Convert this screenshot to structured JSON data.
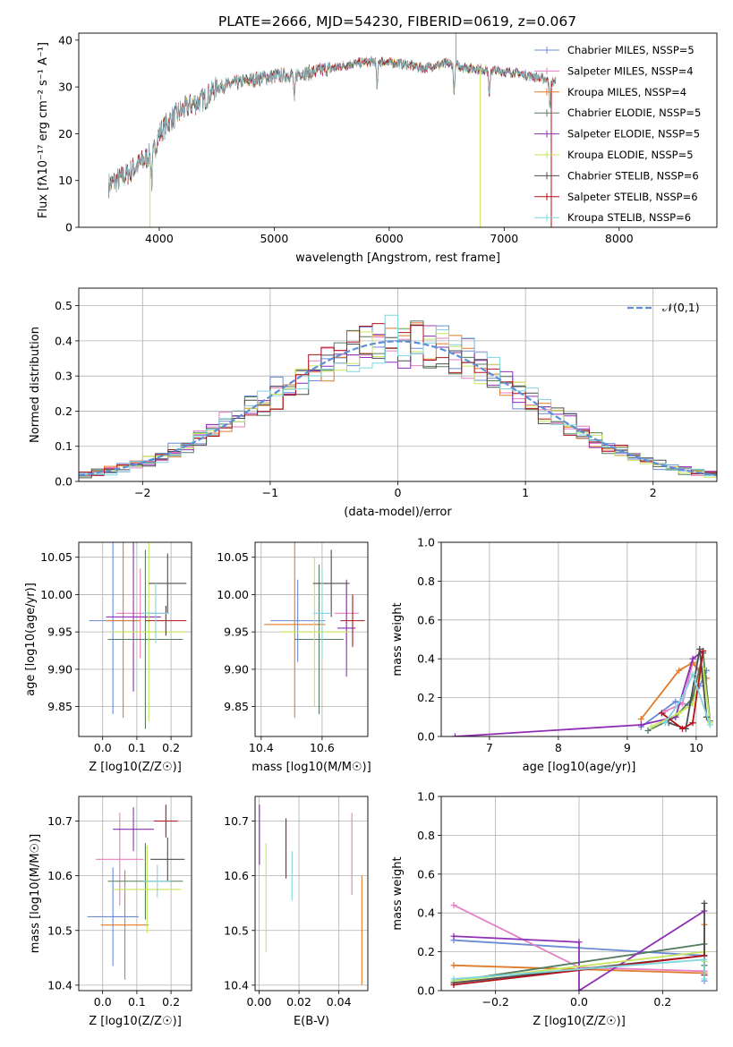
{
  "figure": {
    "title": "PLATE=2666, MJD=54230, FIBERID=0619, z=0.067"
  },
  "colors": {
    "chabrier_miles": "#6a8cd6",
    "salpeter_miles": "#e77fc0",
    "kroupa_miles": "#e07b2a",
    "chabrier_elodie": "#567d5f",
    "salpeter_elodie": "#8e2fb5",
    "kroupa_elodie": "#c6e65c",
    "chabrier_stelib": "#4d4d4d",
    "salpeter_stelib": "#b3121b",
    "kroupa_stelib": "#7fd6df",
    "normal_curve": "#5b8fd9"
  },
  "chart_data": [
    {
      "type": "line",
      "id": "spectrum",
      "xlabel": "wavelength [Angstrom, rest frame]",
      "ylabel": "Flux [fλ10⁻¹⁷ erg cm⁻² s⁻¹ A⁻¹]",
      "xlim": [
        3300,
        8850
      ],
      "ylim": [
        0,
        41.5
      ],
      "xticks": [
        4000,
        5000,
        6000,
        7000,
        8000
      ],
      "yticks": [
        0,
        10,
        20,
        30,
        40
      ],
      "grid": false,
      "legend_position": "top-right",
      "legend": [
        "Chabrier MILES, NSSP=5",
        "Salpeter MILES, NSSP=4",
        "Kroupa MILES, NSSP=4",
        "Chabrier ELODIE, NSSP=5",
        "Salpeter ELODIE, NSSP=5",
        "Kroupa ELODIE, NSSP=5",
        "Chabrier STELIB, NSSP=6",
        "Salpeter STELIB, NSSP=6",
        "Kroupa STELIB, NSSP=6"
      ],
      "continuum": {
        "x": [
          3560,
          3700,
          3850,
          3950,
          4000,
          4100,
          4200,
          4300,
          4400,
          4500,
          4700,
          4900,
          5100,
          5300,
          5500,
          5700,
          5900,
          6100,
          6300,
          6500,
          6700,
          6900,
          7100,
          7300,
          7450
        ],
        "y": [
          9,
          11,
          14,
          16,
          20,
          23,
          25,
          26.5,
          27.5,
          30,
          31,
          32,
          32.5,
          33,
          34,
          35,
          35.5,
          35,
          34,
          35,
          34,
          33.5,
          33,
          32,
          31
        ]
      },
      "absorption_features": [
        3935,
        5175,
        5895,
        6565,
        6870,
        7400
      ],
      "spikes": [
        {
          "x": 3920,
          "y_min": 0
        },
        {
          "x": 6790,
          "y_min": 0
        },
        {
          "x": 7410,
          "y_min": 0
        },
        {
          "x": 6580,
          "y_max": 41.5
        }
      ]
    },
    {
      "type": "histogram",
      "id": "residuals",
      "xlabel": "(data-model)/error",
      "ylabel": "Normed distribution",
      "xlim": [
        -2.5,
        2.5
      ],
      "ylim": [
        0,
        0.55
      ],
      "xticks": [
        -2,
        -1,
        0,
        1,
        2
      ],
      "yticks": [
        0,
        0.1,
        0.2,
        0.3,
        0.4,
        0.5
      ],
      "grid": true,
      "bin_width": 0.1,
      "curve_label": "𝒩(0,1)",
      "curve": {
        "mean": 0,
        "sigma": 1
      }
    },
    {
      "type": "errorbar",
      "id": "age_vs_Z",
      "xlabel": "Z [log10(Z/Z☉)]",
      "ylabel": "age  [log10(age/yr)]",
      "xlim": [
        -0.07,
        0.26
      ],
      "ylim": [
        9.81,
        10.07
      ],
      "xticks": [
        0.0,
        0.1,
        0.2
      ],
      "yticks": [
        9.85,
        9.9,
        9.95,
        10.0,
        10.05
      ],
      "grid": true,
      "points": [
        {
          "series": "chabrier_miles",
          "x": 0.03,
          "y": 9.965,
          "xerr": 0.07,
          "yerr": 0.125
        },
        {
          "series": "salpeter_miles",
          "x": 0.11,
          "y": 9.975,
          "xerr": 0.07,
          "yerr": 0.06
        },
        {
          "series": "kroupa_miles",
          "x": 0.06,
          "y": 9.965,
          "xerr": 0.05,
          "yerr": 0.13
        },
        {
          "series": "chabrier_elodie",
          "x": 0.125,
          "y": 9.94,
          "xerr": 0.11,
          "yerr": 0.12
        },
        {
          "series": "salpeter_elodie",
          "x": 0.09,
          "y": 9.97,
          "xerr": 0.08,
          "yerr": 0.1
        },
        {
          "series": "kroupa_elodie",
          "x": 0.135,
          "y": 9.95,
          "xerr": 0.11,
          "yerr": 0.12
        },
        {
          "series": "chabrier_stelib",
          "x": 0.19,
          "y": 10.015,
          "xerr": 0.055,
          "yerr": 0.04
        },
        {
          "series": "salpeter_stelib",
          "x": 0.185,
          "y": 9.965,
          "xerr": 0.06,
          "yerr": 0.02
        },
        {
          "series": "kroupa_stelib",
          "x": 0.155,
          "y": 9.975,
          "xerr": 0.04,
          "yerr": 0.04
        }
      ]
    },
    {
      "type": "errorbar",
      "id": "age_vs_mass",
      "xlabel": "mass [log10(M/M☉)]",
      "ylabel": "",
      "xlim": [
        10.38,
        10.75
      ],
      "ylim": [
        9.81,
        10.07
      ],
      "xticks": [
        10.4,
        10.6
      ],
      "yticks": [
        9.85,
        9.9,
        9.95,
        10.0,
        10.05
      ],
      "grid": true,
      "points": [
        {
          "series": "chabrier_miles",
          "x": 10.52,
          "y": 9.965,
          "xerr": 0.09,
          "yerr": 0.055
        },
        {
          "series": "salpeter_miles",
          "x": 10.68,
          "y": 9.975,
          "xerr": 0.04,
          "yerr": 0.04
        },
        {
          "series": "kroupa_miles",
          "x": 10.51,
          "y": 9.96,
          "xerr": 0.1,
          "yerr": 0.125
        },
        {
          "series": "chabrier_elodie",
          "x": 10.59,
          "y": 9.94,
          "xerr": 0.08,
          "yerr": 0.1
        },
        {
          "series": "salpeter_elodie",
          "x": 10.68,
          "y": 9.955,
          "xerr": 0.03,
          "yerr": 0.065
        },
        {
          "series": "kroupa_elodie",
          "x": 10.575,
          "y": 9.95,
          "xerr": 0.11,
          "yerr": 0.1
        },
        {
          "series": "chabrier_stelib",
          "x": 10.63,
          "y": 10.015,
          "xerr": 0.06,
          "yerr": 0.045
        },
        {
          "series": "salpeter_stelib",
          "x": 10.7,
          "y": 9.965,
          "xerr": 0.04,
          "yerr": 0.035
        },
        {
          "series": "kroupa_stelib",
          "x": 10.6,
          "y": 9.975,
          "xerr": 0.03,
          "yerr": 0.06
        }
      ]
    },
    {
      "type": "line",
      "id": "mass_weight_vs_age",
      "xlabel": "age  [log10(age/yr)]",
      "ylabel": "mass weight",
      "xlim": [
        6.3,
        10.3
      ],
      "ylim": [
        0,
        1.0
      ],
      "xticks": [
        7,
        8,
        9,
        10
      ],
      "yticks": [
        0.0,
        0.2,
        0.4,
        0.6,
        0.8,
        1.0
      ],
      "grid": true,
      "series": [
        {
          "key": "chabrier_miles",
          "x": [
            9.2,
            9.7,
            9.9,
            10.05,
            10.15
          ],
          "y": [
            0.05,
            0.18,
            0.16,
            0.26,
            0.34
          ]
        },
        {
          "key": "salpeter_miles",
          "x": [
            9.55,
            9.8,
            9.95,
            10.1
          ],
          "y": [
            0.13,
            0.17,
            0.38,
            0.3
          ]
        },
        {
          "key": "kroupa_miles",
          "x": [
            9.2,
            9.75,
            9.95,
            10.15
          ],
          "y": [
            0.09,
            0.34,
            0.38,
            0.3
          ]
        },
        {
          "key": "chabrier_elodie",
          "x": [
            9.3,
            9.7,
            9.95,
            10.1,
            10.2
          ],
          "y": [
            0.03,
            0.1,
            0.2,
            0.43,
            0.08
          ]
        },
        {
          "key": "salpeter_elodie",
          "x": [
            6.5,
            9.2,
            9.7,
            9.95,
            10.1
          ],
          "y": [
            0.0,
            0.06,
            0.1,
            0.4,
            0.44
          ]
        },
        {
          "key": "kroupa_elodie",
          "x": [
            9.35,
            9.75,
            9.95,
            10.1,
            10.2
          ],
          "y": [
            0.05,
            0.12,
            0.17,
            0.35,
            0.07
          ]
        },
        {
          "key": "chabrier_stelib",
          "x": [
            9.6,
            9.85,
            10.05,
            10.15
          ],
          "y": [
            0.07,
            0.04,
            0.45,
            0.1
          ]
        },
        {
          "key": "salpeter_stelib",
          "x": [
            9.5,
            9.8,
            9.95,
            10.1
          ],
          "y": [
            0.12,
            0.04,
            0.07,
            0.44
          ]
        },
        {
          "key": "kroupa_stelib",
          "x": [
            9.55,
            9.8,
            9.95,
            10.2
          ],
          "y": [
            0.07,
            0.2,
            0.32,
            0.06
          ]
        }
      ]
    },
    {
      "type": "errorbar",
      "id": "mass_vs_Z",
      "xlabel": "Z [log10(Z/Z☉)]",
      "ylabel": "mass [log10(M/M☉)]",
      "xlim": [
        -0.07,
        0.26
      ],
      "ylim": [
        10.39,
        10.745
      ],
      "xticks": [
        0.0,
        0.1,
        0.2
      ],
      "yticks": [
        10.4,
        10.5,
        10.6,
        10.7
      ],
      "grid": true,
      "points": [
        {
          "series": "chabrier_miles",
          "x": 0.03,
          "y": 10.525,
          "xerr": 0.075,
          "yerr": 0.09
        },
        {
          "series": "salpeter_miles",
          "x": 0.05,
          "y": 10.63,
          "xerr": 0.07,
          "yerr": 0.085
        },
        {
          "series": "kroupa_miles",
          "x": 0.065,
          "y": 10.51,
          "xerr": 0.07,
          "yerr": 0.1
        },
        {
          "series": "chabrier_elodie",
          "x": 0.125,
          "y": 10.59,
          "xerr": 0.11,
          "yerr": 0.07
        },
        {
          "series": "salpeter_elodie",
          "x": 0.09,
          "y": 10.685,
          "xerr": 0.06,
          "yerr": 0.04
        },
        {
          "series": "kroupa_elodie",
          "x": 0.13,
          "y": 10.575,
          "xerr": 0.1,
          "yerr": 0.08
        },
        {
          "series": "chabrier_stelib",
          "x": 0.19,
          "y": 10.63,
          "xerr": 0.05,
          "yerr": 0.04
        },
        {
          "series": "salpeter_stelib",
          "x": 0.185,
          "y": 10.7,
          "xerr": 0.035,
          "yerr": 0.03
        },
        {
          "series": "kroupa_stelib",
          "x": 0.16,
          "y": 10.59,
          "xerr": 0.04,
          "yerr": 0.03
        }
      ]
    },
    {
      "type": "errorbar",
      "id": "mass_vs_ebv",
      "xlabel": "E(B-V)",
      "ylabel": "",
      "xlim": [
        -0.002,
        0.0545
      ],
      "ylim": [
        10.39,
        10.745
      ],
      "xticks": [
        0.0,
        0.02,
        0.04
      ],
      "yticks": [
        10.4,
        10.5,
        10.6,
        10.7
      ],
      "grid": true,
      "points": [
        {
          "series": "salpeter_elodie",
          "x": 0.0002,
          "y": 10.675,
          "xerr": 0,
          "yerr": 0.055
        },
        {
          "series": "kroupa_elodie",
          "x": 0.0035,
          "y": 10.56,
          "xerr": 0,
          "yerr": 0.1
        },
        {
          "series": "salpeter_stelib",
          "x": 0.0135,
          "y": 10.65,
          "xerr": 0,
          "yerr": 0.055
        },
        {
          "series": "kroupa_stelib",
          "x": 0.0165,
          "y": 10.6,
          "xerr": 0,
          "yerr": 0.045
        },
        {
          "series": "salpeter_miles",
          "x": 0.0465,
          "y": 10.64,
          "xerr": 0,
          "yerr": 0.075
        },
        {
          "series": "kroupa_miles",
          "x": 0.0515,
          "y": 10.5,
          "xerr": 0,
          "yerr": 0.1
        }
      ]
    },
    {
      "type": "line",
      "id": "mass_weight_vs_Z",
      "xlabel": "Z [log10(Z/Z☉)]",
      "ylabel": "mass weight",
      "xlim": [
        -0.33,
        0.33
      ],
      "ylim": [
        0,
        1.0
      ],
      "xticks": [
        -0.2,
        0.0,
        0.2
      ],
      "yticks": [
        0.0,
        0.2,
        0.4,
        0.6,
        0.8,
        1.0
      ],
      "grid": true,
      "series": [
        {
          "key": "chabrier_miles",
          "x": [
            -0.3,
            0.3,
            0.3
          ],
          "y": [
            0.26,
            0.18,
            0.05
          ]
        },
        {
          "key": "salpeter_miles",
          "x": [
            -0.3,
            0.0,
            0.3
          ],
          "y": [
            0.44,
            0.12,
            0.1
          ]
        },
        {
          "key": "kroupa_miles",
          "x": [
            -0.3,
            0.3,
            0.3
          ],
          "y": [
            0.13,
            0.09,
            0.34
          ]
        },
        {
          "key": "chabrier_elodie",
          "x": [
            -0.3,
            0.3,
            0.3
          ],
          "y": [
            0.05,
            0.24,
            0.13
          ]
        },
        {
          "key": "salpeter_elodie",
          "x": [
            -0.3,
            0.0,
            0.0,
            0.3
          ],
          "y": [
            0.28,
            0.25,
            0.0,
            0.41
          ]
        },
        {
          "key": "kroupa_elodie",
          "x": [
            -0.3,
            0.3,
            0.3
          ],
          "y": [
            0.05,
            0.2,
            0.15
          ]
        },
        {
          "key": "chabrier_stelib",
          "x": [
            -0.3,
            0.3,
            0.3
          ],
          "y": [
            0.04,
            0.18,
            0.45
          ]
        },
        {
          "key": "salpeter_stelib",
          "x": [
            -0.3,
            0.3,
            0.3
          ],
          "y": [
            0.03,
            0.18,
            0.08
          ]
        },
        {
          "key": "kroupa_stelib",
          "x": [
            -0.3,
            0.3,
            0.3
          ],
          "y": [
            0.06,
            0.16,
            0.06
          ]
        }
      ]
    }
  ]
}
